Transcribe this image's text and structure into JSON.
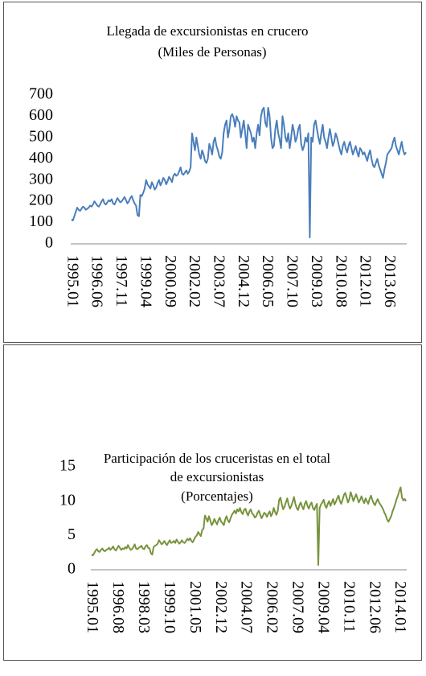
{
  "chart_data": [
    {
      "type": "line",
      "title": "Llegada de excursionistas en crucero",
      "subtitle": "(Miles de Personas)",
      "categories": [
        "1995.01",
        null,
        null,
        null,
        null,
        null,
        null,
        null,
        null,
        null,
        null,
        null,
        null,
        null,
        null,
        null,
        null,
        "1996.06",
        null,
        null,
        null,
        null,
        null,
        null,
        null,
        null,
        null,
        null,
        null,
        null,
        null,
        null,
        null,
        null,
        "1997.11",
        null,
        null,
        null,
        null,
        null,
        null,
        null,
        null,
        null,
        null,
        null,
        null,
        null,
        null,
        null,
        null,
        "1999.04",
        null,
        null,
        null,
        null,
        null,
        null,
        null,
        null,
        null,
        null,
        null,
        null,
        null,
        null,
        null,
        null,
        "2000.09",
        null,
        null,
        null,
        null,
        null,
        null,
        null,
        null,
        null,
        null,
        null,
        null,
        null,
        null,
        null,
        null,
        "2002.02",
        null,
        null,
        null,
        null,
        null,
        null,
        null,
        null,
        null,
        null,
        null,
        null,
        null,
        null,
        null,
        null,
        "2003.07",
        null,
        null,
        null,
        null,
        null,
        null,
        null,
        null,
        null,
        null,
        null,
        null,
        null,
        null,
        null,
        null,
        "2004.12",
        null,
        null,
        null,
        null,
        null,
        null,
        null,
        null,
        null,
        null,
        null,
        null,
        null,
        null,
        null,
        null,
        "2006.05",
        null,
        null,
        null,
        null,
        null,
        null,
        null,
        null,
        null,
        null,
        null,
        null,
        null,
        null,
        null,
        null,
        "2007.10",
        null,
        null,
        null,
        null,
        null,
        null,
        null,
        null,
        null,
        null,
        null,
        null,
        null,
        null,
        null,
        null,
        "2009.03",
        null,
        null,
        null,
        null,
        null,
        null,
        null,
        null,
        null,
        null,
        null,
        null,
        null,
        null,
        null,
        null,
        "2010.08",
        null,
        null,
        null,
        null,
        null,
        null,
        null,
        null,
        null,
        null,
        null,
        null,
        null,
        null,
        null,
        null,
        "2012.01",
        null,
        null,
        null,
        null,
        null,
        null,
        null,
        null,
        null,
        null,
        null,
        null,
        null,
        null,
        null,
        null,
        "2013.06",
        null,
        null,
        null,
        null,
        null,
        null,
        null,
        null,
        null,
        null,
        null,
        null
      ],
      "series": [
        {
          "name": "Llegada de excursionistas en crucero",
          "color": "#4a7ebb",
          "values": [
            115,
            110,
            130,
            150,
            170,
            160,
            155,
            165,
            175,
            170,
            160,
            165,
            170,
            180,
            175,
            185,
            200,
            190,
            180,
            175,
            185,
            200,
            210,
            190,
            185,
            195,
            205,
            200,
            210,
            190,
            185,
            200,
            215,
            205,
            195,
            200,
            210,
            220,
            205,
            190,
            200,
            215,
            225,
            205,
            190,
            180,
            135,
            130,
            230,
            225,
            240,
            260,
            300,
            280,
            270,
            260,
            290,
            275,
            255,
            265,
            285,
            300,
            275,
            290,
            310,
            300,
            280,
            295,
            315,
            305,
            290,
            320,
            330,
            320,
            325,
            340,
            360,
            330,
            325,
            335,
            345,
            330,
            340,
            360,
            520,
            480,
            440,
            500,
            460,
            420,
            400,
            440,
            420,
            390,
            380,
            400,
            470,
            450,
            420,
            480,
            500,
            460,
            440,
            410,
            400,
            430,
            520,
            560,
            580,
            500,
            540,
            600,
            610,
            590,
            550,
            600,
            580,
            570,
            500,
            540,
            580,
            520,
            450,
            560,
            540,
            520,
            480,
            500,
            450,
            520,
            560,
            510,
            600,
            630,
            640,
            570,
            550,
            640,
            600,
            500,
            450,
            460,
            540,
            580,
            520,
            490,
            450,
            600,
            560,
            500,
            480,
            520,
            450,
            500,
            560,
            530,
            480,
            500,
            540,
            560,
            470,
            440,
            460,
            500,
            480,
            520,
            30,
            500,
            480,
            560,
            580,
            540,
            500,
            470,
            520,
            560,
            500,
            480,
            450,
            500,
            540,
            500,
            460,
            480,
            520,
            500,
            470,
            440,
            420,
            460,
            480,
            450,
            430,
            460,
            480,
            450,
            420,
            440,
            460,
            430,
            410,
            450,
            440,
            420,
            430,
            410,
            390,
            420,
            440,
            400,
            370,
            360,
            380,
            400,
            370,
            350,
            330,
            310,
            350,
            380,
            420,
            430,
            440,
            450,
            480,
            500,
            460,
            440,
            420,
            450,
            480,
            440,
            420,
            430
          ]
        }
      ],
      "ylim": [
        0,
        700
      ],
      "yticks": [
        0,
        100,
        200,
        300,
        400,
        500,
        600,
        700
      ],
      "grid": false
    },
    {
      "type": "line",
      "title": "Participación de los cruceristas en el total",
      "subtitle": "de excursionistas",
      "subtitle2": "(Porcentajes)",
      "categories": [
        "1995.01",
        null,
        null,
        null,
        null,
        null,
        null,
        null,
        null,
        null,
        null,
        null,
        null,
        null,
        null,
        null,
        null,
        null,
        null,
        "1996.08",
        null,
        null,
        null,
        null,
        null,
        null,
        null,
        null,
        null,
        null,
        null,
        null,
        null,
        null,
        null,
        null,
        null,
        null,
        "1998.03",
        null,
        null,
        null,
        null,
        null,
        null,
        null,
        null,
        null,
        null,
        null,
        null,
        null,
        null,
        null,
        null,
        null,
        null,
        "1999.10",
        null,
        null,
        null,
        null,
        null,
        null,
        null,
        null,
        null,
        null,
        null,
        null,
        null,
        null,
        null,
        null,
        null,
        null,
        "2001.05",
        null,
        null,
        null,
        null,
        null,
        null,
        null,
        null,
        null,
        null,
        null,
        null,
        null,
        null,
        null,
        null,
        null,
        null,
        "2002.12",
        null,
        null,
        null,
        null,
        null,
        null,
        null,
        null,
        null,
        null,
        null,
        null,
        null,
        null,
        null,
        null,
        null,
        null,
        "2004.07",
        null,
        null,
        null,
        null,
        null,
        null,
        null,
        null,
        null,
        null,
        null,
        null,
        null,
        null,
        null,
        null,
        null,
        null,
        "2006.02",
        null,
        null,
        null,
        null,
        null,
        null,
        null,
        null,
        null,
        null,
        null,
        null,
        null,
        null,
        null,
        null,
        null,
        null,
        "2007.09",
        null,
        null,
        null,
        null,
        null,
        null,
        null,
        null,
        null,
        null,
        null,
        null,
        null,
        null,
        null,
        null,
        null,
        null,
        "2009.04",
        null,
        null,
        null,
        null,
        null,
        null,
        null,
        null,
        null,
        null,
        null,
        null,
        null,
        null,
        null,
        null,
        null,
        null,
        "2010.11",
        null,
        null,
        null,
        null,
        null,
        null,
        null,
        null,
        null,
        null,
        null,
        null,
        null,
        null,
        null,
        null,
        null,
        null,
        "2012.06",
        null,
        null,
        null,
        null,
        null,
        null,
        null,
        null,
        null,
        null,
        null,
        null,
        null,
        null,
        null,
        null,
        null,
        null,
        "2014.01",
        null,
        null,
        null,
        null,
        null
      ],
      "series": [
        {
          "name": "Participación de los cruceristas en el total",
          "color": "#77933c",
          "values": [
            2.2,
            2.1,
            2.4,
            2.8,
            3.0,
            2.7,
            2.6,
            2.9,
            3.1,
            2.8,
            2.7,
            2.9,
            3.0,
            3.2,
            2.9,
            3.1,
            3.4,
            3.0,
            2.8,
            3.1,
            3.5,
            3.2,
            2.9,
            3.1,
            3.0,
            3.3,
            3.1,
            3.6,
            3.2,
            2.9,
            3.0,
            3.3,
            3.7,
            3.1,
            3.0,
            3.2,
            3.3,
            3.5,
            3.1,
            3.0,
            3.4,
            3.6,
            3.2,
            3.1,
            2.4,
            2.2,
            3.3,
            3.5,
            3.6,
            3.8,
            4.3,
            4.0,
            3.7,
            3.9,
            4.2,
            3.8,
            3.6,
            4.0,
            4.3,
            3.9,
            4.0,
            4.2,
            3.9,
            4.4,
            4.1,
            3.8,
            4.0,
            4.3,
            4.0,
            3.9,
            4.2,
            4.5,
            4.3,
            4.6,
            4.2,
            4.0,
            4.4,
            4.8,
            5.0,
            5.5,
            5.2,
            4.9,
            5.8,
            6.0,
            7.9,
            7.5,
            7.0,
            7.8,
            7.2,
            6.5,
            6.8,
            7.4,
            7.0,
            6.6,
            7.2,
            7.6,
            7.0,
            6.8,
            6.5,
            7.3,
            7.8,
            7.2,
            6.9,
            7.5,
            8.0,
            8.3,
            8.6,
            8.2,
            8.8,
            8.5,
            9.0,
            8.4,
            8.1,
            8.7,
            8.9,
            8.3,
            7.9,
            8.5,
            8.8,
            8.2,
            8.0,
            7.6,
            7.8,
            8.3,
            8.6,
            8.0,
            7.5,
            7.9,
            8.3,
            8.1,
            7.7,
            8.2,
            8.5,
            7.8,
            8.2,
            9.0,
            8.4,
            8.0,
            8.6,
            10.2,
            10.5,
            9.5,
            8.8,
            9.2,
            9.8,
            10.4,
            9.5,
            8.9,
            9.3,
            9.9,
            10.6,
            9.6,
            9.0,
            8.7,
            9.4,
            9.8,
            9.2,
            8.8,
            9.6,
            10.0,
            9.3,
            8.9,
            9.5,
            9.8,
            9.0,
            8.7,
            9.2,
            9.6,
            0.7,
            9.0,
            9.5,
            9.8,
            10.2,
            9.4,
            9.0,
            9.6,
            10.0,
            9.3,
            9.8,
            10.3,
            9.5,
            9.9,
            10.4,
            10.8,
            10.0,
            9.6,
            10.2,
            10.9,
            11.2,
            10.5,
            9.8,
            10.3,
            11.3,
            10.7,
            10.0,
            10.5,
            11.0,
            10.4,
            9.8,
            10.2,
            10.7,
            10.1,
            9.7,
            10.4,
            10.0,
            9.6,
            10.3,
            10.8,
            10.2,
            9.7,
            9.4,
            9.9,
            10.3,
            9.8,
            9.5,
            9.2,
            8.8,
            8.3,
            7.9,
            7.3,
            7.0,
            7.4,
            7.8,
            8.5,
            9.0,
            9.6,
            10.3,
            10.8,
            11.5,
            12.0,
            10.5,
            10.1,
            10.3,
            10.0
          ]
        }
      ],
      "ylim": [
        0,
        15
      ],
      "yticks": [
        0,
        5,
        10,
        15
      ],
      "grid": false
    }
  ]
}
